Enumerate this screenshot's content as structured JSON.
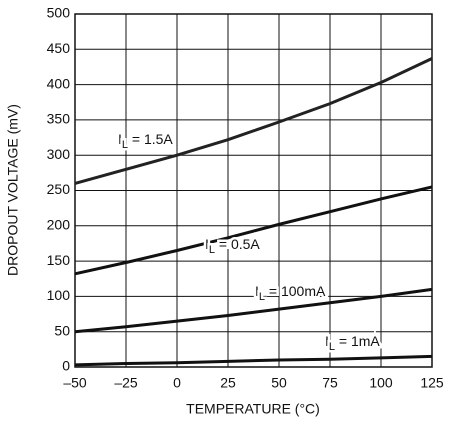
{
  "chart_data": {
    "type": "line",
    "y_label": "DROPOUT VOLTAGE (mV)",
    "x_label": "TEMPERATURE (°C)",
    "x": [
      -50,
      -25,
      0,
      25,
      50,
      75,
      100,
      125
    ],
    "series": [
      {
        "label": {
          "main": "I",
          "sub": "L",
          "rest": " = 1.5A"
        },
        "color": "#222222",
        "values": [
          260,
          280,
          300,
          322,
          347,
          373,
          403,
          437
        ]
      },
      {
        "label": {
          "main": "I",
          "sub": "L",
          "rest": " = 0.5A"
        },
        "color": "#111111",
        "values": [
          132,
          148,
          165,
          183,
          202,
          220,
          238,
          255
        ]
      },
      {
        "label": {
          "main": "I",
          "sub": "L",
          "rest": " = 100mA"
        },
        "color": "#111111",
        "values": [
          50,
          57,
          65,
          73,
          82,
          91,
          100,
          110
        ]
      },
      {
        "label": {
          "main": "I",
          "sub": "L",
          "rest": " = 1mA"
        },
        "color": "#111111",
        "values": [
          3,
          5,
          6,
          8,
          10,
          11,
          13,
          15
        ]
      }
    ],
    "xlim": [
      -50,
      125
    ],
    "xticks": [
      {
        "value": -50,
        "label": "–50"
      },
      {
        "value": -25,
        "label": "–25"
      },
      0,
      25,
      50,
      75,
      100,
      125
    ],
    "ylim": [
      0,
      500
    ],
    "yticks": [
      0,
      50,
      100,
      150,
      200,
      250,
      300,
      350,
      400,
      450,
      500
    ],
    "grid": true
  }
}
